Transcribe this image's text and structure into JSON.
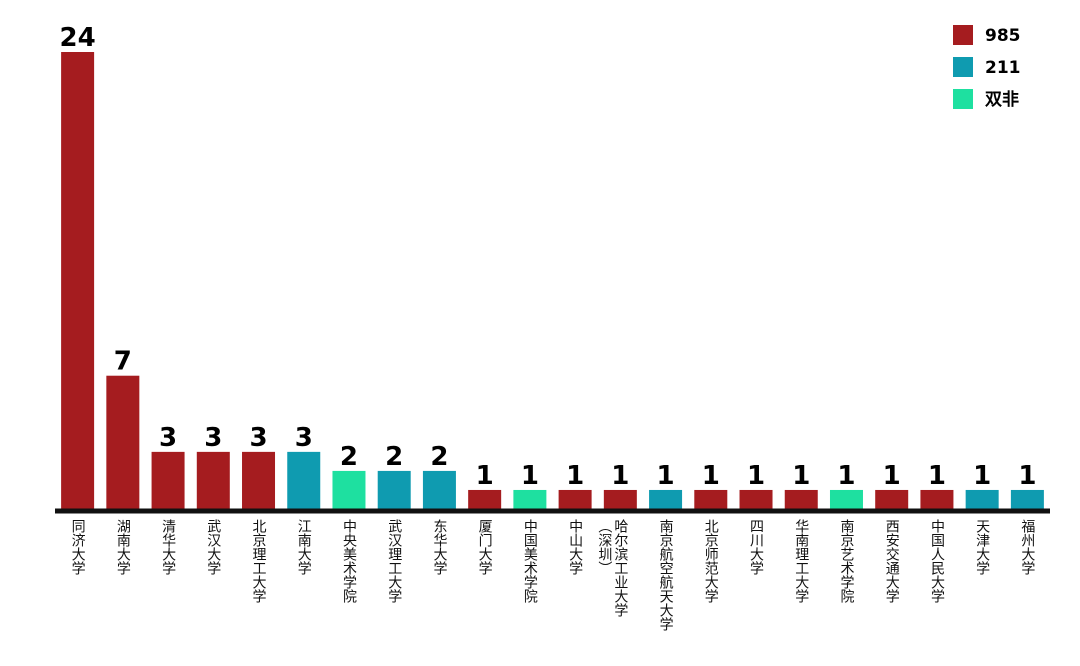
{
  "chart_data": {
    "type": "bar",
    "categories": [
      "同济大学",
      "湖南大学",
      "清华大学",
      "武汉大学",
      "北京理工大学",
      "江南大学",
      "中央美术学院",
      "武汉理工大学",
      "东华大学",
      "厦门大学",
      "中国美术学院",
      "中山大学",
      "哈尔滨工业大学（深圳）",
      "南京航空航天大学",
      "北京师范大学",
      "四川大学",
      "华南理工大学",
      "南京艺术学院",
      "西安交通大学",
      "中国人民大学",
      "天津大学",
      "福州大学"
    ],
    "series": [
      {
        "name": "985",
        "color": "#a51c1f",
        "values": [
          24,
          7,
          3,
          3,
          3,
          null,
          null,
          null,
          null,
          1,
          null,
          1,
          1,
          null,
          1,
          1,
          1,
          null,
          1,
          1,
          null,
          null
        ]
      },
      {
        "name": "211",
        "color": "#0f9bb0",
        "values": [
          null,
          null,
          null,
          null,
          null,
          3,
          null,
          2,
          2,
          null,
          null,
          null,
          null,
          1,
          null,
          null,
          null,
          null,
          null,
          null,
          1,
          1
        ]
      },
      {
        "name": "双非",
        "color": "#1ee0a0",
        "values": [
          null,
          null,
          null,
          null,
          null,
          null,
          2,
          null,
          null,
          null,
          1,
          null,
          null,
          null,
          null,
          null,
          null,
          1,
          null,
          null,
          null,
          null
        ]
      }
    ],
    "ylim": [
      0,
      24
    ],
    "legend": "top-right"
  }
}
